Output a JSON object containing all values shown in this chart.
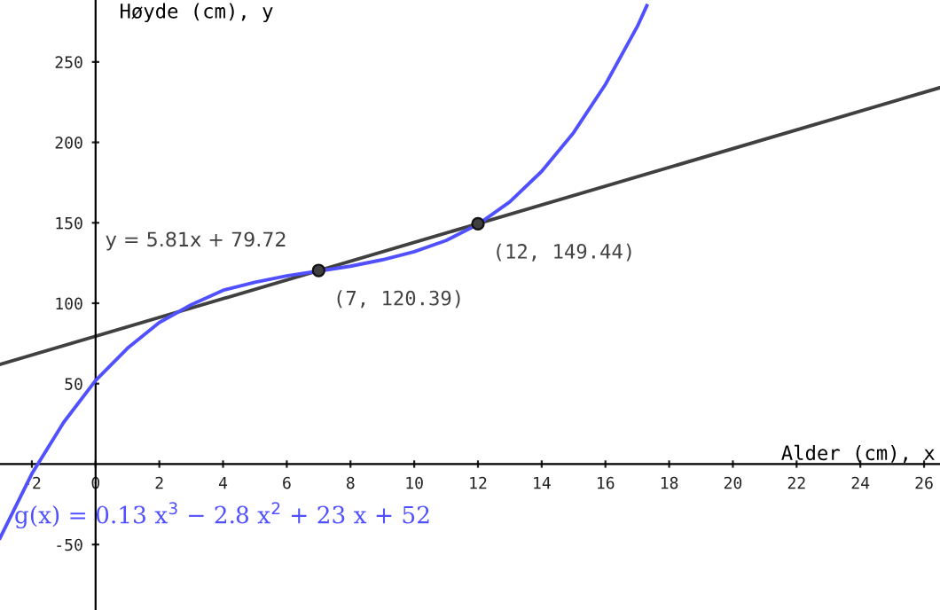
{
  "chart_data": {
    "type": "line",
    "xlabel": "Alder (cm), x",
    "ylabel": "Høyde (cm), y",
    "xlim": [
      -3,
      26.5
    ],
    "ylim": [
      -90.7,
      288.5
    ],
    "xticks": [
      -2,
      0,
      2,
      4,
      6,
      8,
      10,
      12,
      14,
      16,
      18,
      20,
      22,
      24,
      26
    ],
    "yticks": [
      -50,
      50,
      100,
      150,
      200,
      250
    ],
    "grid": false,
    "legend": false,
    "series": [
      {
        "name": "g(x) = 0.13 x$^{3}$ − 2.8 x$^{2}$ + 23 x + 52",
        "color": "#5050ff",
        "marker": "none",
        "line_style": "solid",
        "x": [
          -3,
          -2,
          -1,
          0,
          1,
          2,
          3,
          4,
          5,
          6,
          7,
          8,
          9,
          10,
          11,
          12,
          13,
          14,
          15,
          16,
          17,
          17.3
        ],
        "values": [
          -46,
          -6,
          26,
          52,
          72,
          88,
          99,
          108,
          113,
          117,
          120,
          123,
          127,
          132,
          139,
          149,
          163,
          182,
          206,
          236,
          272,
          285
        ]
      },
      {
        "name": "y = 5.81x + 79.72",
        "color": "#404040",
        "marker": "none",
        "line_style": "solid",
        "x": [
          -3,
          26.5
        ],
        "values": [
          62,
          234
        ]
      },
      {
        "type": "scatter",
        "color": "#404040",
        "marker": "circle",
        "x": [
          7,
          12
        ],
        "values": [
          120.39,
          149.44
        ]
      }
    ],
    "annotations": [
      {
        "text": "(7, 120.39)",
        "x": 7,
        "y": 120.39
      },
      {
        "text": "(12, 149.44)",
        "x": 12,
        "y": 149.44
      }
    ]
  }
}
